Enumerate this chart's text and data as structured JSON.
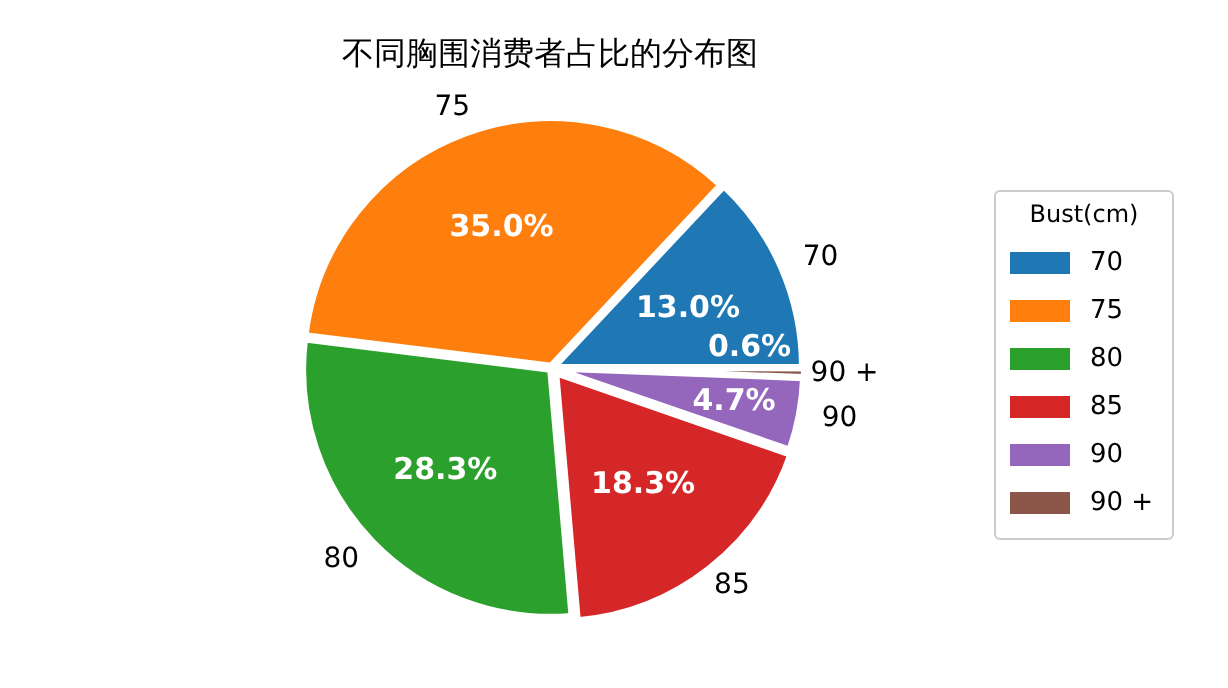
{
  "chart_data": {
    "type": "pie",
    "title": "不同胸围消费者占比的分布图",
    "legend_title": "Bust(cm)",
    "legend": "right",
    "categories": [
      "70",
      "75",
      "80",
      "85",
      "90",
      "90 +"
    ],
    "values": [
      13.0,
      35.0,
      28.3,
      18.3,
      4.7,
      0.6
    ],
    "value_labels": [
      "13.0%",
      "35.0%",
      "28.3%",
      "18.3%",
      "4.7%",
      "0.6%"
    ],
    "colors": [
      "#1f77b4",
      "#ff7f0e",
      "#2ca02c",
      "#d62728",
      "#9467bd",
      "#8c564b"
    ]
  }
}
